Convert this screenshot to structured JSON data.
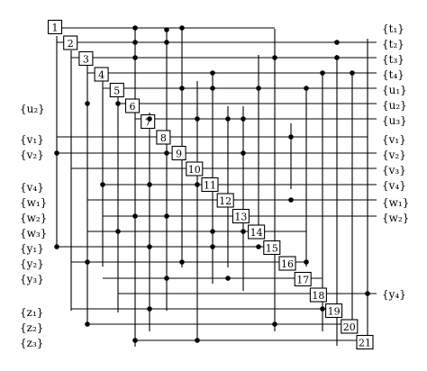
{
  "nodes": [
    "1",
    "2",
    "3",
    "4",
    "5",
    "6",
    "7",
    "8",
    "9",
    "10",
    "11",
    "12",
    "13",
    "14",
    "15",
    "16",
    "17",
    "18",
    "19",
    "20",
    "21"
  ],
  "right_labels": [
    "{t₁}",
    "{t₂}",
    "{t₃}",
    "{t₄}",
    "{u₁}",
    "{u₂}",
    "{u₃}",
    "{v₁}",
    "{v₂}",
    "{v₃}",
    "{v₄}",
    "{w₁}",
    "{w₂}",
    "{y₄}"
  ],
  "left_labels": [
    "{u₂}",
    "{v₁}",
    "{v₂}",
    "{v₄}",
    "{w₁}",
    "{w₂}",
    "{w₃}",
    "{y₁}",
    "{y₂}",
    "{y₃}",
    "{z₁}",
    "{z₂}",
    "{z₃}"
  ],
  "colors": {
    "line": "#000000",
    "dot": "#000000",
    "box_fill": "#ffffff"
  }
}
